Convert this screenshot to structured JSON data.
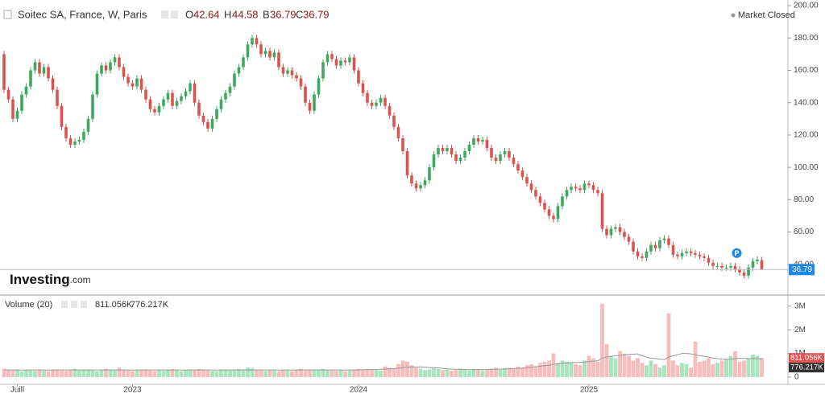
{
  "header": {
    "symbol": "Soitec SA, France, W, Paris",
    "ohlc": [
      {
        "label": "O",
        "value": 42.64
      },
      {
        "label": "H",
        "value": 44.58
      },
      {
        "label": "B",
        "value": 36.79
      },
      {
        "label": "C",
        "value": 36.79
      }
    ],
    "status": "Market Closed",
    "logo": "Investing",
    "logo_suffix": ".com",
    "marker": "P"
  },
  "chart_data": [
    {
      "type": "candlestick",
      "up_color": "#3fa85f",
      "down_color": "#d9534f",
      "last_color": "#1e88e5",
      "ylim": [
        22,
        202
      ],
      "yticks": [
        {
          "value": 40,
          "label": "40.00"
        },
        {
          "value": 60,
          "label": "60.00"
        },
        {
          "value": 80,
          "label": "80.00"
        },
        {
          "value": 100,
          "label": "100.00"
        },
        {
          "value": 120,
          "label": "120.00"
        },
        {
          "value": 140,
          "label": "140.00"
        },
        {
          "value": 160,
          "label": "160.00"
        },
        {
          "value": 180,
          "label": "180.00"
        },
        {
          "value": 200,
          "label": "200.00"
        }
      ],
      "xticks": [
        {
          "value": 3,
          "label": "Juill"
        },
        {
          "value": 29,
          "label": "2023"
        },
        {
          "value": 80,
          "label": "2024"
        },
        {
          "value": 132,
          "label": "2025"
        }
      ],
      "open": [
        170,
        148,
        142,
        130,
        135,
        145,
        150,
        160,
        165,
        158,
        162,
        155,
        148,
        138,
        125,
        118,
        114,
        116,
        117,
        122,
        130,
        145,
        158,
        163,
        160,
        165,
        168,
        162,
        156,
        152,
        150,
        155,
        148,
        142,
        136,
        134,
        138,
        142,
        146,
        138,
        141,
        144,
        147,
        152,
        140,
        132,
        128,
        124,
        130,
        136,
        142,
        146,
        150,
        158,
        162,
        168,
        176,
        180,
        176,
        170,
        172,
        168,
        171,
        162,
        158,
        160,
        157,
        155,
        150,
        140,
        135,
        145,
        155,
        165,
        170,
        167,
        163,
        166,
        165,
        168,
        160,
        152,
        146,
        140,
        138,
        140,
        143,
        138,
        132,
        125,
        118,
        110,
        95,
        90,
        87,
        89,
        92,
        100,
        108,
        112,
        110,
        112,
        108,
        104,
        106,
        110,
        114,
        118,
        116,
        117,
        112,
        106,
        104,
        108,
        110,
        106,
        102,
        98,
        94,
        90,
        86,
        82,
        78,
        74,
        70,
        68,
        76,
        82,
        86,
        88,
        87,
        86,
        90,
        89,
        86,
        84,
        62,
        58,
        62,
        63,
        60,
        57,
        54,
        48,
        45,
        44,
        48,
        52,
        50,
        55,
        56,
        52,
        46,
        45,
        47,
        48,
        47,
        46,
        45,
        44,
        41,
        39,
        39,
        38,
        38,
        39,
        37,
        35,
        33,
        38,
        42,
        42.64
      ],
      "high": [
        172,
        150,
        144,
        137,
        147,
        152,
        162,
        167,
        167,
        164,
        164,
        157,
        150,
        140,
        127,
        120,
        118,
        119,
        124,
        132,
        147,
        160,
        165,
        165,
        167,
        170,
        170,
        164,
        158,
        154,
        157,
        157,
        150,
        144,
        138,
        140,
        144,
        148,
        148,
        143,
        146,
        149,
        154,
        154,
        142,
        134,
        130,
        132,
        138,
        144,
        148,
        152,
        160,
        164,
        170,
        178,
        182,
        182,
        178,
        174,
        174,
        173,
        173,
        164,
        162,
        162,
        159,
        157,
        152,
        142,
        147,
        157,
        167,
        172,
        172,
        169,
        168,
        168,
        170,
        170,
        162,
        154,
        148,
        142,
        142,
        145,
        145,
        140,
        134,
        127,
        120,
        112,
        97,
        92,
        91,
        94,
        102,
        110,
        114,
        114,
        114,
        114,
        110,
        108,
        112,
        116,
        120,
        120,
        119,
        119,
        114,
        108,
        110,
        112,
        112,
        108,
        104,
        100,
        96,
        92,
        88,
        84,
        80,
        76,
        72,
        78,
        84,
        88,
        90,
        90,
        89,
        92,
        92,
        91,
        88,
        86,
        64,
        64,
        65,
        65,
        62,
        59,
        56,
        50,
        47,
        50,
        54,
        54,
        57,
        58,
        58,
        54,
        48,
        49,
        50,
        50,
        49,
        48,
        47,
        46,
        43,
        41,
        41,
        40,
        41,
        41,
        39,
        37,
        40,
        44,
        45,
        44.58
      ],
      "low": [
        146,
        140,
        128,
        128,
        133,
        143,
        148,
        158,
        156,
        156,
        153,
        146,
        136,
        123,
        116,
        112,
        112,
        114,
        115,
        120,
        128,
        143,
        156,
        158,
        158,
        163,
        160,
        154,
        150,
        148,
        148,
        146,
        140,
        134,
        132,
        132,
        136,
        140,
        136,
        136,
        139,
        142,
        145,
        138,
        130,
        126,
        122,
        122,
        128,
        134,
        140,
        144,
        148,
        156,
        160,
        166,
        174,
        174,
        168,
        168,
        166,
        166,
        160,
        156,
        156,
        155,
        153,
        148,
        138,
        133,
        133,
        143,
        153,
        163,
        165,
        161,
        161,
        163,
        163,
        158,
        150,
        144,
        138,
        136,
        136,
        138,
        136,
        130,
        123,
        116,
        108,
        93,
        88,
        85,
        85,
        87,
        90,
        98,
        106,
        108,
        108,
        106,
        102,
        102,
        104,
        108,
        112,
        114,
        114,
        110,
        104,
        102,
        102,
        106,
        104,
        100,
        96,
        92,
        88,
        84,
        80,
        76,
        72,
        68,
        66,
        66,
        74,
        80,
        84,
        85,
        84,
        84,
        87,
        84,
        82,
        60,
        56,
        56,
        60,
        58,
        55,
        52,
        46,
        43,
        42,
        42,
        46,
        48,
        48,
        53,
        50,
        44,
        43,
        43,
        45,
        45,
        44,
        43,
        42,
        39,
        37,
        37,
        36,
        36,
        36,
        35,
        33,
        31,
        31,
        36,
        40,
        36.79
      ],
      "close": [
        148,
        142,
        130,
        135,
        145,
        150,
        160,
        165,
        158,
        162,
        155,
        148,
        138,
        125,
        118,
        114,
        116,
        117,
        122,
        130,
        145,
        158,
        163,
        160,
        165,
        168,
        162,
        156,
        152,
        150,
        155,
        148,
        142,
        136,
        134,
        138,
        142,
        146,
        138,
        141,
        144,
        147,
        152,
        140,
        132,
        128,
        124,
        130,
        136,
        142,
        146,
        150,
        158,
        162,
        168,
        176,
        180,
        176,
        170,
        172,
        168,
        171,
        162,
        158,
        160,
        157,
        155,
        150,
        140,
        135,
        145,
        155,
        165,
        170,
        167,
        163,
        166,
        165,
        168,
        160,
        152,
        146,
        140,
        138,
        140,
        143,
        138,
        132,
        125,
        118,
        110,
        95,
        90,
        87,
        89,
        92,
        100,
        108,
        112,
        110,
        112,
        108,
        104,
        106,
        110,
        114,
        118,
        116,
        117,
        112,
        106,
        104,
        108,
        110,
        106,
        102,
        98,
        94,
        90,
        86,
        82,
        78,
        74,
        70,
        68,
        76,
        82,
        86,
        88,
        87,
        86,
        90,
        89,
        86,
        84,
        62,
        58,
        62,
        63,
        60,
        57,
        54,
        48,
        45,
        44,
        48,
        52,
        50,
        55,
        56,
        52,
        46,
        45,
        47,
        48,
        47,
        46,
        45,
        44,
        41,
        39,
        39,
        38,
        38,
        39,
        37,
        35,
        33,
        38,
        42,
        43,
        36.79
      ]
    },
    {
      "type": "volume",
      "title": "Volume (20)",
      "up_color": "#a9e4bf",
      "down_color": "#f7bcbc",
      "ma_color": "#999999",
      "ylim": [
        0,
        3400000
      ],
      "yticks": [
        0,
        {
          "value": 1000000,
          "label": "1M"
        },
        {
          "value": 2000000,
          "label": "2M"
        },
        {
          "value": 3000000,
          "label": "3M"
        }
      ],
      "values": [
        350000,
        300000,
        280000,
        320000,
        250000,
        300000,
        280000,
        260000,
        300000,
        270000,
        250000,
        300000,
        320000,
        280000,
        260000,
        300000,
        350000,
        280000,
        300000,
        320000,
        280000,
        250000,
        300000,
        350000,
        300000,
        280000,
        400000,
        300000,
        280000,
        250000,
        300000,
        320000,
        300000,
        280000,
        260000,
        300000,
        270000,
        300000,
        350000,
        280000,
        250000,
        300000,
        320000,
        280000,
        350000,
        300000,
        280000,
        260000,
        250000,
        300000,
        320000,
        280000,
        300000,
        350000,
        320000,
        400000,
        380000,
        300000,
        280000,
        260000,
        300000,
        280000,
        250000,
        300000,
        280000,
        250000,
        300000,
        350000,
        280000,
        300000,
        320000,
        300000,
        350000,
        300000,
        280000,
        260000,
        300000,
        250000,
        280000,
        300000,
        350000,
        300000,
        350000,
        320000,
        300000,
        280000,
        450000,
        400000,
        350000,
        550000,
        700000,
        650000,
        500000,
        400000,
        350000,
        300000,
        320000,
        380000,
        350000,
        300000,
        320000,
        280000,
        300000,
        350000,
        300000,
        280000,
        350000,
        300000,
        280000,
        300000,
        350000,
        400000,
        320000,
        380000,
        400000,
        350000,
        450000,
        400000,
        500000,
        550000,
        450000,
        600000,
        650000,
        700000,
        1000000,
        600000,
        700000,
        650000,
        600000,
        550000,
        500000,
        700000,
        900000,
        800000,
        650000,
        3100000,
        1400000,
        900000,
        800000,
        1100000,
        1000000,
        900000,
        700000,
        800000,
        600000,
        500000,
        700000,
        550000,
        400000,
        500000,
        2700000,
        700000,
        500000,
        600000,
        550000,
        400000,
        1500000,
        650000,
        700000,
        800000,
        550000,
        600000,
        700000,
        750000,
        900000,
        1100000,
        650000,
        700000,
        800000,
        950000,
        900000,
        811056
      ],
      "value_label": "811.056K",
      "ma": [
        300000,
        300000,
        300000,
        300000,
        300000,
        300000,
        300000,
        300000,
        300000,
        300000,
        300000,
        300000,
        300000,
        300000,
        300000,
        300000,
        300000,
        300000,
        300000,
        300000,
        300000,
        300000,
        300000,
        300000,
        300000,
        300000,
        300000,
        300000,
        300000,
        300000,
        300000,
        300000,
        300000,
        300000,
        300000,
        300000,
        300000,
        300000,
        300000,
        300000,
        300000,
        300000,
        300000,
        300000,
        300000,
        300000,
        300000,
        300000,
        300000,
        300000,
        300000,
        300000,
        300000,
        300000,
        300000,
        300000,
        300000,
        300000,
        300000,
        300000,
        300000,
        300000,
        300000,
        300000,
        300000,
        300000,
        300000,
        300000,
        300000,
        300000,
        300000,
        300000,
        300000,
        300000,
        300000,
        300000,
        300000,
        300000,
        300000,
        300000,
        300000,
        310000,
        315000,
        320000,
        325000,
        330000,
        340000,
        350000,
        360000,
        380000,
        400000,
        420000,
        430000,
        430000,
        430000,
        420000,
        410000,
        400000,
        390000,
        370000,
        350000,
        340000,
        330000,
        330000,
        320000,
        320000,
        320000,
        320000,
        320000,
        320000,
        330000,
        330000,
        340000,
        340000,
        350000,
        360000,
        370000,
        380000,
        400000,
        420000,
        440000,
        460000,
        480000,
        500000,
        540000,
        560000,
        580000,
        600000,
        610000,
        620000,
        620000,
        640000,
        660000,
        680000,
        690000,
        800000,
        850000,
        880000,
        900000,
        920000,
        940000,
        960000,
        970000,
        980000,
        900000,
        850000,
        800000,
        780000,
        760000,
        740000,
        850000,
        900000,
        950000,
        1000000,
        1000000,
        980000,
        950000,
        900000,
        880000,
        850000,
        800000,
        780000,
        760000,
        750000,
        760000,
        780000,
        800000,
        790000,
        780000,
        790000,
        780000,
        776217
      ],
      "ma_label": "776.217K"
    }
  ]
}
